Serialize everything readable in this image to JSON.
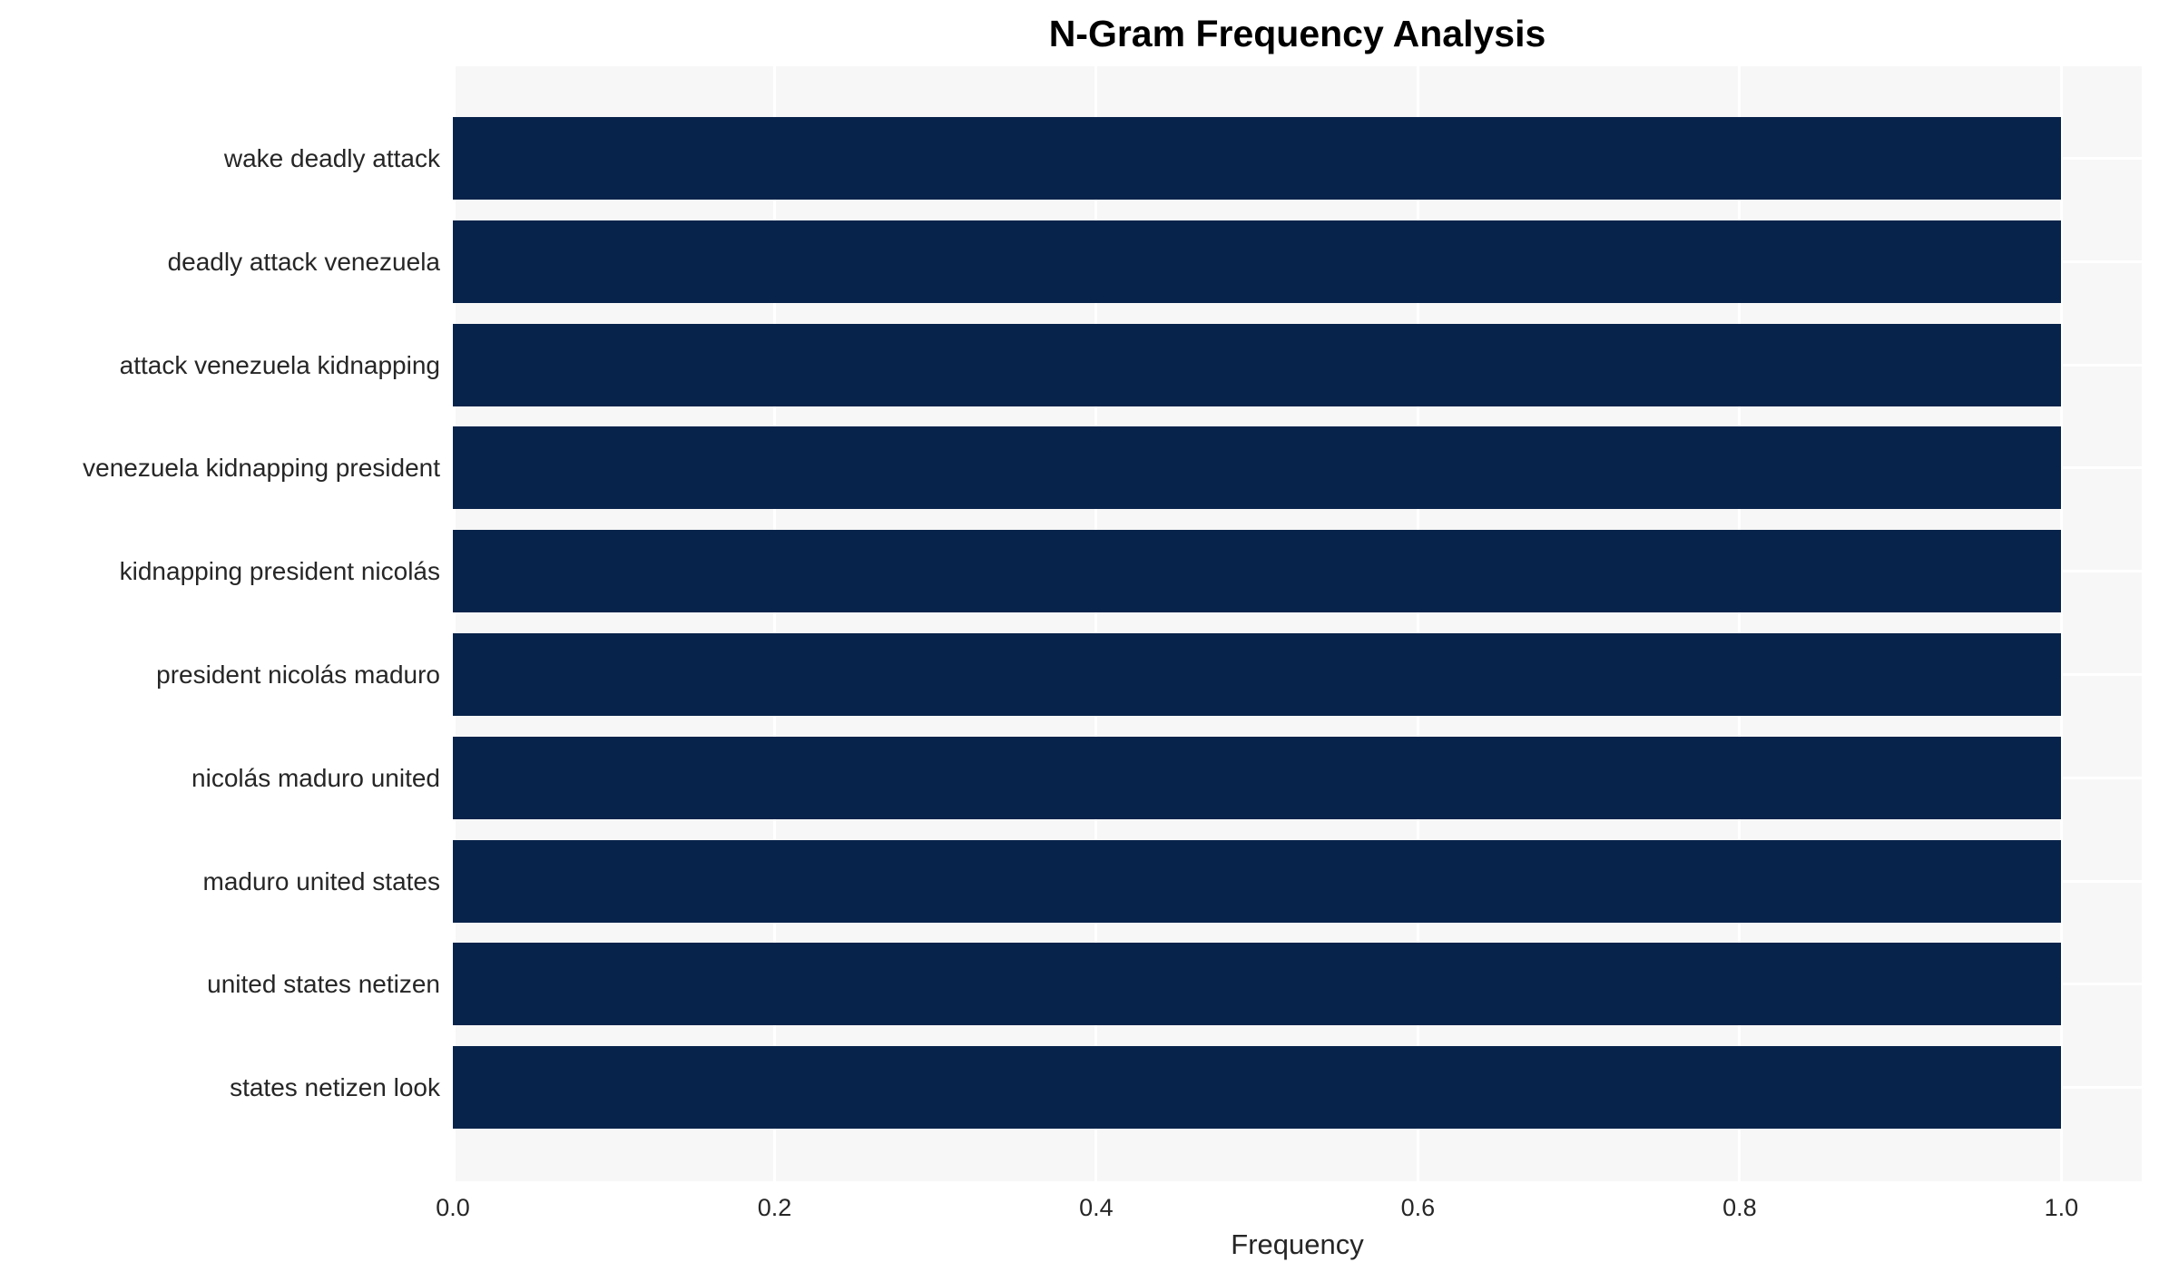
{
  "chart_data": {
    "type": "bar",
    "orientation": "horizontal",
    "title": "N-Gram Frequency Analysis",
    "xlabel": "Frequency",
    "ylabel": "",
    "categories": [
      "wake deadly attack",
      "deadly attack venezuela",
      "attack venezuela kidnapping",
      "venezuela kidnapping president",
      "kidnapping president nicolás",
      "president nicolás maduro",
      "nicolás maduro united",
      "maduro united states",
      "united states netizen",
      "states netizen look"
    ],
    "values": [
      1.0,
      1.0,
      1.0,
      1.0,
      1.0,
      1.0,
      1.0,
      1.0,
      1.0,
      1.0
    ],
    "xticks": [
      0.0,
      0.2,
      0.4,
      0.6,
      0.8,
      1.0
    ],
    "xlim": [
      0,
      1.05
    ],
    "grid": true,
    "legend": null,
    "colors": {
      "bar": "#08234b",
      "plot_background": "#f7f7f7",
      "gridline": "#ffffff",
      "text": "#262626",
      "title_text": "#000000"
    }
  }
}
